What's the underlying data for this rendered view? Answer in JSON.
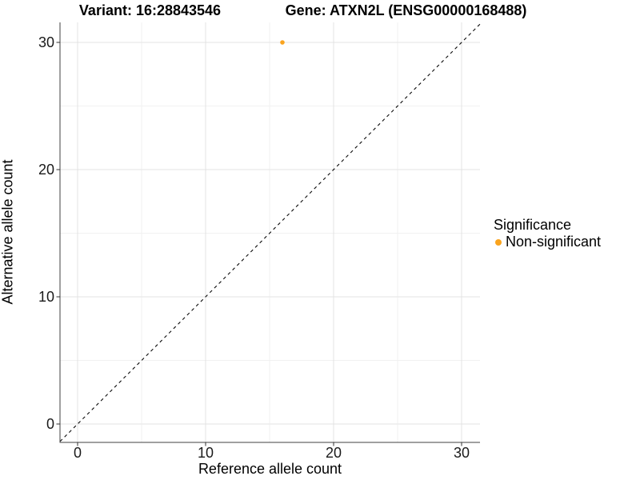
{
  "chart_data": {
    "type": "scatter",
    "title_left": "Variant: 16:28843546",
    "title_right": "Gene: ATXN2L (ENSG00000168488)",
    "xlabel": "Reference allele count",
    "ylabel": "Alternative allele count",
    "x_ticks": [
      0,
      10,
      20,
      30
    ],
    "y_ticks": [
      0,
      10,
      20,
      30
    ],
    "x_minor_ticks": [
      5,
      15,
      25
    ],
    "y_minor_ticks": [
      5,
      15,
      25
    ],
    "xlim": [
      -1.4,
      31.4
    ],
    "ylim": [
      -1.45,
      31.6
    ],
    "grid": "major+minor",
    "identity_line": {
      "type": "dashed",
      "equation": "y = x"
    },
    "series": [
      {
        "name": "Non-significant",
        "color": "#FAA41E",
        "points": [
          {
            "x": 16,
            "y": 30
          }
        ]
      }
    ],
    "legend": {
      "title": "Significance",
      "position": "right",
      "entries": [
        {
          "label": "Non-significant",
          "color": "#FAA41E"
        }
      ]
    },
    "colors": {
      "point": "#FAA41E",
      "axis_line": "#404040",
      "tick_mark": "#333333",
      "grid_major": "#E3E3E3",
      "grid_minor": "#F1F1F1",
      "identity_line": "#0a0a0a",
      "background": "#FFFFFF"
    }
  }
}
